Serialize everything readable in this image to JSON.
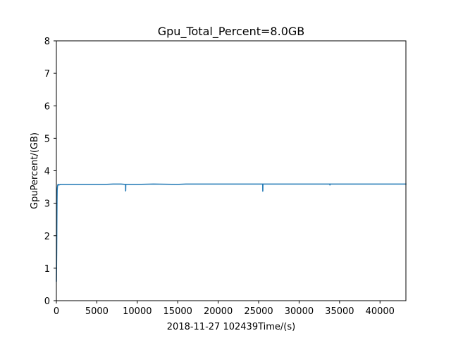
{
  "chart_data": {
    "type": "line",
    "title": "Gpu_Total_Percent=8.0GB",
    "xlabel": "2018-11-27 102439Time/(s)",
    "ylabel": "GpuPercent/(GB)",
    "xlim": [
      0,
      43200
    ],
    "ylim": [
      0,
      8
    ],
    "xticks": [
      0,
      5000,
      10000,
      15000,
      20000,
      25000,
      30000,
      35000,
      40000
    ],
    "yticks": [
      0,
      1,
      2,
      3,
      4,
      5,
      6,
      7,
      8
    ],
    "grid": false,
    "series": [
      {
        "color": "#1f77b4",
        "x": [
          0,
          20,
          40,
          60,
          80,
          100,
          130,
          160,
          200,
          250,
          300,
          500,
          1000,
          3000,
          6000,
          7000,
          8000,
          8550,
          8560,
          8570,
          8580,
          8600,
          10000,
          12000,
          15000,
          16000,
          18000,
          20000,
          22000,
          25000,
          25500,
          25510,
          25520,
          25530,
          25600,
          28000,
          30000,
          33000,
          33800,
          33810,
          33820,
          35000,
          38000,
          40000,
          43200
        ],
        "y": [
          0.6,
          1.0,
          1.5,
          2.3,
          3.0,
          3.4,
          3.5,
          3.55,
          3.58,
          3.58,
          3.56,
          3.58,
          3.58,
          3.58,
          3.58,
          3.59,
          3.59,
          3.58,
          3.38,
          3.4,
          3.58,
          3.58,
          3.58,
          3.59,
          3.58,
          3.59,
          3.59,
          3.59,
          3.59,
          3.59,
          3.59,
          3.37,
          3.4,
          3.59,
          3.59,
          3.59,
          3.59,
          3.59,
          3.59,
          3.56,
          3.59,
          3.59,
          3.59,
          3.59,
          3.59
        ]
      }
    ]
  }
}
